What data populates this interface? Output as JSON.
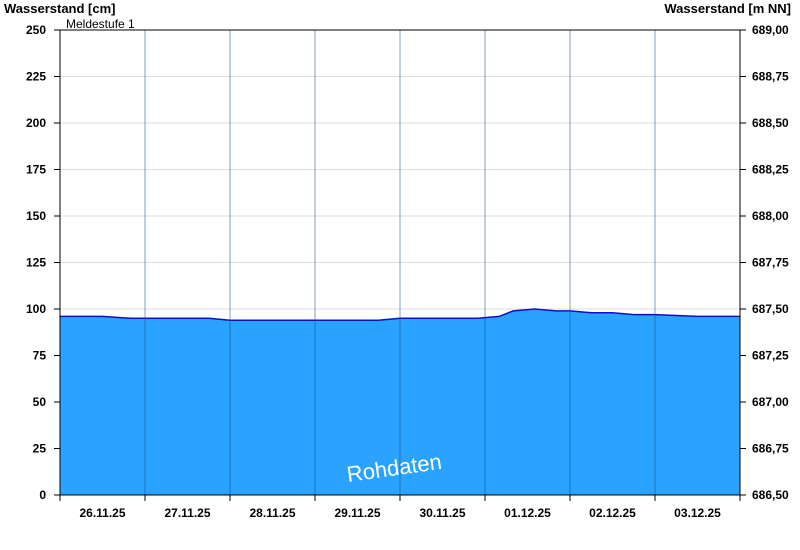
{
  "chart_data": {
    "type": "area",
    "left_axis_title": "Wasserstand [cm]",
    "right_axis_title": "Wasserstand [m NN]",
    "y_left": {
      "min": 0,
      "max": 250,
      "ticks": [
        0,
        25,
        50,
        75,
        100,
        125,
        150,
        175,
        200,
        225,
        250
      ]
    },
    "y_right": {
      "min": 686.5,
      "max": 689.0,
      "ticks": [
        686.5,
        686.75,
        687.0,
        687.25,
        687.5,
        687.75,
        688.0,
        688.25,
        688.5,
        688.75,
        689.0
      ],
      "tick_labels": [
        "686,50",
        "686,75",
        "687,00",
        "687,25",
        "687,50",
        "687,75",
        "688,00",
        "688,25",
        "688,50",
        "688,75",
        "689,00"
      ]
    },
    "x_range": [
      "2025-11-26T00:00",
      "2025-12-04T00:00"
    ],
    "x_tick_labels": [
      "26.11.25",
      "27.11.25",
      "28.11.25",
      "29.11.25",
      "30.11.25",
      "01.12.25",
      "02.12.25",
      "03.12.25"
    ],
    "threshold": {
      "label": "Meldestufe 1",
      "value": 250,
      "color": "#f5b041"
    },
    "fill_color": "#29a3ff",
    "line_color": "#1010c0",
    "grid": true,
    "watermark": "Rohdaten",
    "series": [
      {
        "x": [
          "2025-11-26T00:00",
          "2025-11-26T12:00",
          "2025-11-26T20:00",
          "2025-11-27T00:00",
          "2025-11-27T08:00",
          "2025-11-27T18:00",
          "2025-11-28T00:00",
          "2025-11-28T12:00",
          "2025-11-29T00:00",
          "2025-11-29T12:00",
          "2025-11-29T18:00",
          "2025-11-30T00:00",
          "2025-11-30T12:00",
          "2025-11-30T22:00",
          "2025-12-01T04:00",
          "2025-12-01T08:00",
          "2025-12-01T14:00",
          "2025-12-01T20:00",
          "2025-12-02T00:00",
          "2025-12-02T06:00",
          "2025-12-02T12:00",
          "2025-12-02T18:00",
          "2025-12-03T00:00",
          "2025-12-03T12:00",
          "2025-12-04T00:00"
        ],
        "y": [
          96,
          96,
          95,
          95,
          95,
          95,
          94,
          94,
          94,
          94,
          94,
          95,
          95,
          95,
          96,
          99,
          100,
          99,
          99,
          98,
          98,
          97,
          97,
          96,
          96
        ]
      }
    ]
  }
}
